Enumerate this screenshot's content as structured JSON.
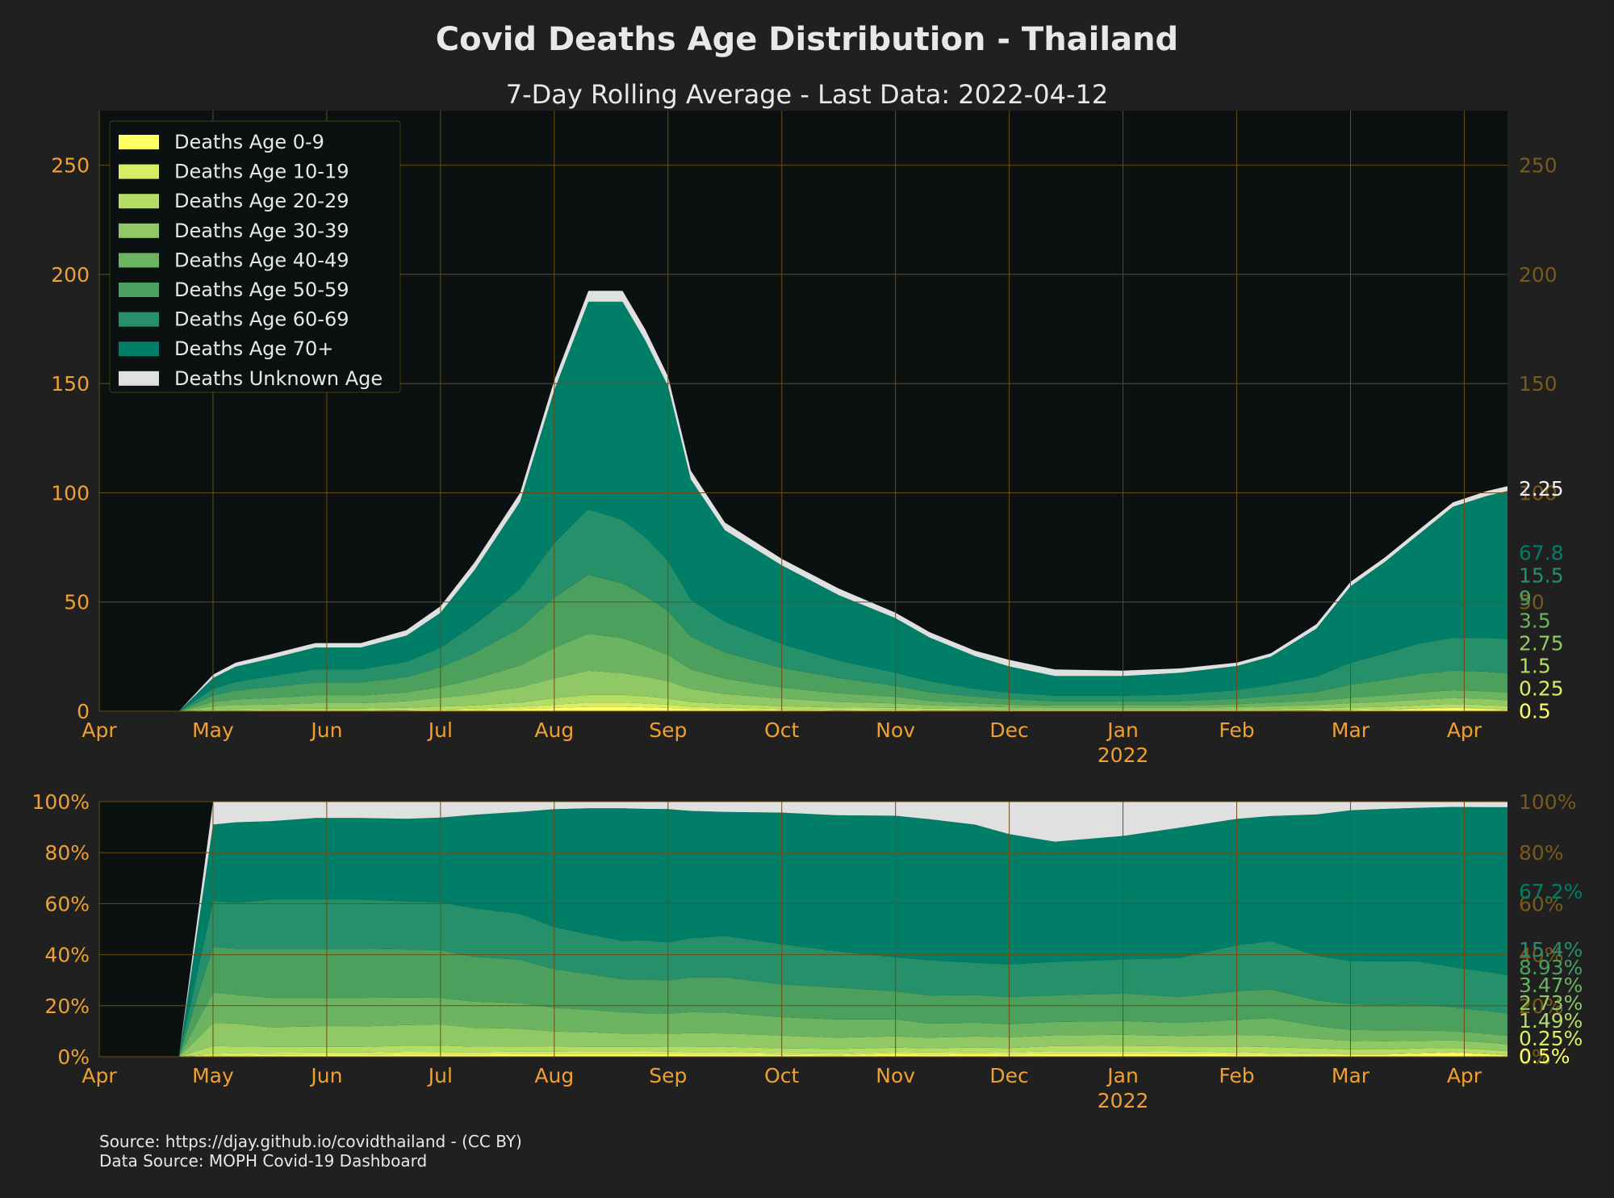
{
  "title": "Covid Deaths Age Distribution - Thailand",
  "subtitle": "7-Day Rolling Average - Last Data: 2022-04-12",
  "source_lines": [
    "Source: https://djay.github.io/covidthailand - (CC BY)",
    "Data Source: MOPH Covid-19 Dashboard"
  ],
  "colors": {
    "background": "#202020",
    "plot_background": "#0b1010",
    "grid": "#6b4d10",
    "tick": "#f0a030",
    "right_tick": "#7a5a1a"
  },
  "chart_data": [
    {
      "type": "area",
      "stacked": true,
      "x_tick_labels": [
        "Apr",
        "May",
        "Jun",
        "Jul",
        "Aug",
        "Sep",
        "Oct",
        "Nov",
        "Dec",
        "Jan",
        "Feb",
        "Mar",
        "Apr"
      ],
      "x_year_label": "2022",
      "x_year_under": 9,
      "x_range_months": [
        0,
        12.38
      ],
      "ylim": [
        0,
        275
      ],
      "y_ticks": [
        0,
        50,
        100,
        150,
        200,
        250
      ],
      "grid": true,
      "legend_position": "top-left",
      "x": [
        0,
        0.7,
        1,
        1.2,
        1.5,
        1.9,
        2.3,
        2.7,
        3,
        3.3,
        3.7,
        4,
        4.3,
        4.6,
        4.8,
        5,
        5.2,
        5.5,
        6,
        6.5,
        7,
        7.3,
        7.7,
        8,
        8.4,
        9,
        9.5,
        10,
        10.3,
        10.7,
        11,
        11.3,
        11.6,
        11.9,
        12.2,
        12.38
      ],
      "series": [
        {
          "name": "Deaths Age 0-9",
          "color": "#ffff66",
          "values": [
            0,
            0,
            0.1,
            0.1,
            0.2,
            0.2,
            0.2,
            0.3,
            0.4,
            0.6,
            1,
            1.5,
            2,
            2,
            1.8,
            1.5,
            1,
            0.8,
            0.5,
            0.3,
            0.5,
            0.3,
            0.3,
            0.2,
            0.2,
            0.2,
            0.2,
            0.2,
            0.2,
            0.3,
            0.5,
            0.6,
            1,
            1.5,
            1,
            0.5
          ]
        },
        {
          "name": "Deaths Age 10-19",
          "color": "#d8ec66",
          "values": [
            0,
            0,
            0.1,
            0.2,
            0.2,
            0.3,
            0.3,
            0.4,
            0.5,
            0.6,
            1,
            1.5,
            2,
            2,
            1.8,
            1.5,
            1,
            0.8,
            0.5,
            0.4,
            0.3,
            0.3,
            0.2,
            0.2,
            0.2,
            0.2,
            0.2,
            0.2,
            0.2,
            0.2,
            0.2,
            0.2,
            0.3,
            0.3,
            0.3,
            0.25
          ]
        },
        {
          "name": "Deaths Age 20-29",
          "color": "#b4dd66",
          "values": [
            0,
            0,
            0.5,
            0.6,
            0.6,
            0.7,
            0.7,
            0.9,
            1.2,
            1.5,
            2,
            3,
            3.5,
            3.5,
            3.2,
            2.8,
            2.2,
            1.8,
            1.3,
            1,
            0.8,
            0.6,
            0.5,
            0.4,
            0.4,
            0.4,
            0.4,
            0.5,
            0.6,
            0.8,
            1,
            1.2,
            1.4,
            1.5,
            1.5,
            1.5
          ]
        },
        {
          "name": "Deaths Age 30-39",
          "color": "#8fc864",
          "values": [
            0,
            0,
            1.5,
            2,
            2,
            2.5,
            2.5,
            3,
            4,
            5,
            7,
            9,
            11,
            10,
            9,
            8,
            6,
            4.5,
            3.5,
            2.5,
            2,
            1.5,
            1.2,
            1,
            0.8,
            0.8,
            0.8,
            1,
            1.2,
            1.5,
            2,
            2.3,
            2.5,
            2.8,
            2.8,
            2.75
          ]
        },
        {
          "name": "Deaths Age 40-49",
          "color": "#6db462",
          "values": [
            0,
            0,
            2,
            2.5,
            3,
            3.5,
            3.5,
            4,
            5,
            7,
            10,
            14,
            17,
            16,
            14,
            12,
            9,
            7,
            5,
            4,
            3,
            2,
            1.5,
            1.2,
            1,
            1,
            1,
            1.3,
            1.8,
            2,
            2.5,
            3,
            3.3,
            3.5,
            3.5,
            3.5
          ]
        },
        {
          "name": "Deaths Age 50-59",
          "color": "#4ca05e",
          "values": [
            0,
            0,
            3,
            4,
            5,
            6,
            6,
            7,
            9,
            12,
            17,
            23,
            27,
            25,
            23,
            20,
            15,
            12,
            9,
            7,
            5,
            4,
            3,
            2.5,
            2,
            2,
            2,
            2.5,
            3,
            4,
            6,
            7,
            8.5,
            9,
            9,
            9
          ]
        },
        {
          "name": "Deaths Age 60-69",
          "color": "#25906a",
          "values": [
            0,
            0,
            3,
            4,
            5,
            6,
            6,
            7,
            9,
            13,
            18,
            25,
            30,
            29,
            27,
            23,
            17,
            14,
            11,
            8,
            6,
            5,
            3.5,
            3,
            2.5,
            2.5,
            3,
            4,
            5,
            7,
            10,
            12,
            14,
            15,
            15.5,
            15.5
          ]
        },
        {
          "name": "Deaths Age 70+",
          "color": "#007e68",
          "values": [
            0,
            0,
            5,
            7,
            8,
            10,
            10,
            12,
            16,
            25,
            40,
            70,
            95,
            100,
            90,
            80,
            55,
            42,
            36,
            30,
            25,
            20,
            15,
            12,
            9,
            9,
            10,
            11,
            13,
            22,
            35,
            42,
            50,
            60,
            65,
            67.8
          ]
        },
        {
          "name": "Deaths Unknown Age",
          "color": "#e0e0e0",
          "values": [
            0,
            0,
            1.5,
            1.8,
            2,
            2,
            2,
            2.5,
            3,
            3.5,
            4,
            4.5,
            5,
            5,
            5,
            4.5,
            4,
            3.5,
            3,
            3,
            2.5,
            2.5,
            2.5,
            3,
            3,
            2.5,
            2,
            1.5,
            1.5,
            2,
            2,
            2,
            2,
            2,
            2.2,
            2.25
          ]
        }
      ],
      "end_labels": [
        "0.5",
        "0.25",
        "1.5",
        "2.75",
        "3.5",
        "9",
        "15.5",
        "67.8",
        "2.25"
      ]
    },
    {
      "type": "area",
      "stacked": true,
      "percent": true,
      "ylim": [
        0,
        100
      ],
      "y_ticks": [
        "0%",
        "20%",
        "40%",
        "60%",
        "80%",
        "100%"
      ],
      "end_labels": [
        "0.5%",
        "0.25%",
        "1.49%",
        "2.73%",
        "3.47%",
        "8.93%",
        "15.4%",
        "67.2%"
      ]
    }
  ]
}
